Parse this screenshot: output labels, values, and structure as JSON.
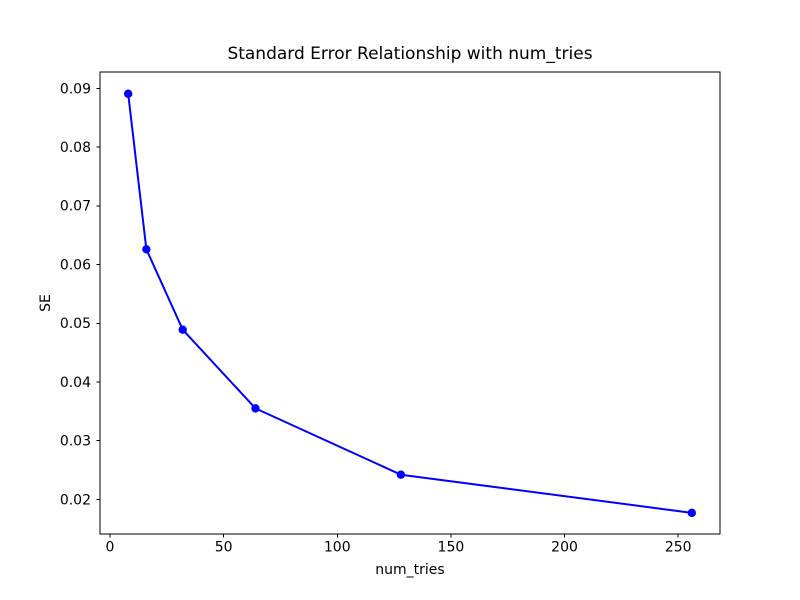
{
  "figure": {
    "background_color": "#ffffff",
    "text_color": "#000000",
    "spine_color": "#000000"
  },
  "chart_data": {
    "type": "line",
    "title": "Standard Error Relationship with num_tries",
    "xlabel": "num_tries",
    "ylabel": "SE",
    "x": [
      8,
      16,
      32,
      64,
      128,
      256
    ],
    "y": [
      0.0891,
      0.0626,
      0.0489,
      0.0355,
      0.0242,
      0.0177
    ],
    "series": [
      {
        "name": "SE",
        "x": [
          8,
          16,
          32,
          64,
          128,
          256
        ],
        "values": [
          0.0891,
          0.0626,
          0.0489,
          0.0355,
          0.0242,
          0.0177
        ]
      }
    ],
    "line_color": "#0000ff",
    "marker": "circle",
    "marker_color": "#0000ff",
    "xlim": [
      -4.4,
      268.4
    ],
    "ylim": [
      0.0141,
      0.0928
    ],
    "xticks": [
      0,
      50,
      100,
      150,
      200,
      250
    ],
    "yticks": [
      0.02,
      0.03,
      0.04,
      0.05,
      0.06,
      0.07,
      0.08,
      0.09
    ],
    "ytick_decimals": 2,
    "grid": false,
    "legend": null
  }
}
